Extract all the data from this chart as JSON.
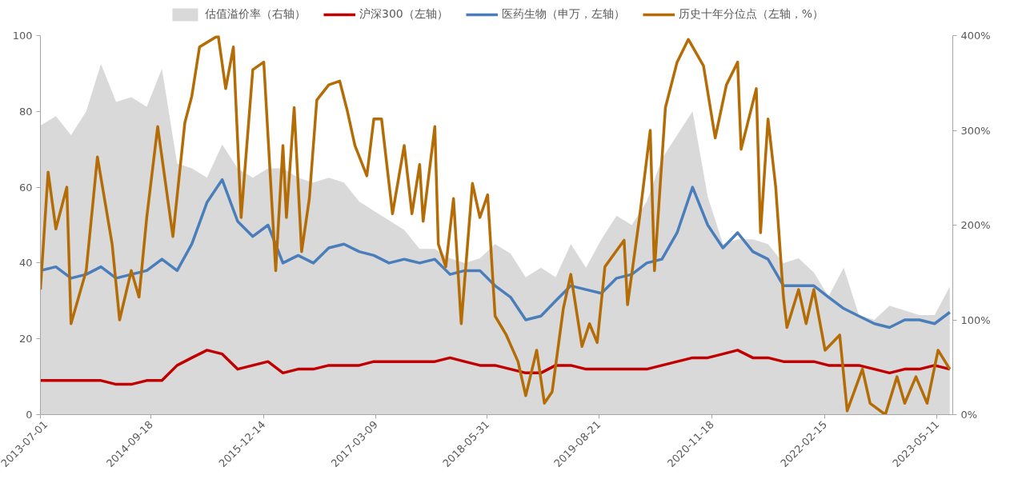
{
  "chart_data": {
    "type": "line",
    "legend": "top",
    "x": [
      "2013-07",
      "2013-09",
      "2013-11",
      "2014-01",
      "2014-03",
      "2014-05",
      "2014-07",
      "2014-09",
      "2014-11",
      "2015-01",
      "2015-03",
      "2015-05",
      "2015-07",
      "2015-09",
      "2015-11",
      "2016-01",
      "2016-03",
      "2016-05",
      "2016-07",
      "2016-09",
      "2016-11",
      "2017-01",
      "2017-03",
      "2017-05",
      "2017-07",
      "2017-09",
      "2017-11",
      "2018-01",
      "2018-03",
      "2018-05",
      "2018-07",
      "2018-09",
      "2018-11",
      "2019-01",
      "2019-03",
      "2019-05",
      "2019-07",
      "2019-09",
      "2019-11",
      "2020-01",
      "2020-03",
      "2020-05",
      "2020-07",
      "2020-09",
      "2020-11",
      "2021-01",
      "2021-03",
      "2021-05",
      "2021-07",
      "2021-09",
      "2021-11",
      "2022-01",
      "2022-03",
      "2022-05",
      "2022-07",
      "2022-09",
      "2022-11",
      "2023-01",
      "2023-03",
      "2023-05",
      "2023-07"
    ],
    "xlim": [
      "2013-07-01",
      "2023-07-13"
    ],
    "xticks": [
      "2013-07-01",
      "2014-09-18",
      "2015-12-14",
      "2017-03-09",
      "2018-05-31",
      "2019-08-21",
      "2020-11-18",
      "2022-02-15",
      "2023-05-11"
    ],
    "ylim": [
      0,
      100
    ],
    "yticks": [
      0,
      20,
      40,
      60,
      80,
      100
    ],
    "y2lim": [
      0,
      400
    ],
    "y2ticks": [
      {
        "value": 0,
        "label": "0%"
      },
      {
        "value": 100,
        "label": "100%"
      },
      {
        "value": 200,
        "label": "200%"
      },
      {
        "value": 300,
        "label": "300%"
      },
      {
        "value": 400,
        "label": "400%"
      }
    ],
    "series": [
      {
        "name": "估值溢价率（右轴）",
        "type": "area",
        "axis": "y2",
        "color": "#d9d9d9",
        "values": [
          305,
          315,
          295,
          320,
          370,
          330,
          335,
          325,
          365,
          265,
          260,
          250,
          285,
          260,
          250,
          260,
          260,
          250,
          245,
          250,
          245,
          225,
          215,
          205,
          195,
          175,
          175,
          165,
          160,
          165,
          180,
          170,
          145,
          155,
          145,
          180,
          155,
          185,
          210,
          200,
          225,
          270,
          295,
          320,
          230,
          180,
          185,
          185,
          180,
          160,
          165,
          150,
          125,
          155,
          105,
          100,
          115,
          110,
          105,
          105,
          135
        ]
      },
      {
        "name": "沪深300（左轴）",
        "color": "#c00000",
        "values": [
          9,
          9,
          9,
          9,
          9,
          8,
          8,
          9,
          9,
          13,
          15,
          17,
          16,
          12,
          13,
          14,
          11,
          12,
          12,
          13,
          13,
          13,
          14,
          14,
          14,
          14,
          14,
          15,
          14,
          13,
          13,
          12,
          11,
          11,
          13,
          13,
          12,
          12,
          12,
          12,
          12,
          13,
          14,
          15,
          15,
          16,
          17,
          15,
          15,
          14,
          14,
          14,
          13,
          13,
          13,
          12,
          11,
          12,
          12,
          13,
          12
        ]
      },
      {
        "name": "医药生物（申万，左轴）",
        "color": "#4a7ebb",
        "values": [
          38,
          39,
          36,
          37,
          39,
          36,
          37,
          38,
          41,
          38,
          45,
          56,
          62,
          51,
          47,
          50,
          40,
          42,
          40,
          44,
          45,
          43,
          42,
          40,
          41,
          40,
          41,
          37,
          38,
          38,
          34,
          31,
          25,
          26,
          30,
          34,
          33,
          32,
          36,
          37,
          40,
          41,
          48,
          60,
          50,
          44,
          48,
          43,
          41,
          34,
          34,
          34,
          31,
          28,
          26,
          24,
          23,
          25,
          25,
          24,
          27
        ]
      },
      {
        "name": "历史十年分位点（左轴，%）",
        "color": "#b46d06",
        "x": [
          "2013-07-01",
          "2013-08-01",
          "2013-09-01",
          "2013-10-15",
          "2013-11-01",
          "2014-01-01",
          "2014-02-15",
          "2014-04-15",
          "2014-05-15",
          "2014-07-01",
          "2014-08-01",
          "2014-09-01",
          "2014-10-15",
          "2014-12-15",
          "2015-02-01",
          "2015-03-01",
          "2015-04-01",
          "2015-06-15",
          "2015-07-15",
          "2015-08-15",
          "2015-09-15",
          "2015-11-01",
          "2015-12-15",
          "2016-02-01",
          "2016-03-01",
          "2016-03-15",
          "2016-04-15",
          "2016-05-15",
          "2016-06-15",
          "2016-07-15",
          "2016-09-01",
          "2016-10-15",
          "2016-11-15",
          "2016-12-15",
          "2017-02-01",
          "2017-03-01",
          "2017-04-01",
          "2017-05-15",
          "2017-07-01",
          "2017-08-01",
          "2017-09-01",
          "2017-09-15",
          "2017-11-01",
          "2017-11-15",
          "2017-12-15",
          "2018-01-15",
          "2018-02-15",
          "2018-04-01",
          "2018-05-01",
          "2018-06-01",
          "2018-07-01",
          "2018-08-15",
          "2018-10-01",
          "2018-11-01",
          "2018-12-15",
          "2019-01-15",
          "2019-02-15",
          "2019-04-01",
          "2019-05-01",
          "2019-06-15",
          "2019-07-15",
          "2019-08-15",
          "2019-09-15",
          "2019-12-01",
          "2019-12-15",
          "2020-02-01",
          "2020-03-15",
          "2020-04-01",
          "2020-05-15",
          "2020-07-01",
          "2020-08-15",
          "2020-10-15",
          "2020-12-01",
          "2021-01-15",
          "2021-03-01",
          "2021-03-15",
          "2021-05-15",
          "2021-06-01",
          "2021-07-01",
          "2021-08-01",
          "2021-09-01",
          "2021-09-15",
          "2021-11-01",
          "2021-12-01",
          "2022-01-01",
          "2022-02-15",
          "2022-04-15",
          "2022-05-15",
          "2022-07-15",
          "2022-08-15",
          "2022-10-15",
          "2022-12-01",
          "2023-01-01",
          "2023-02-15",
          "2023-04-01",
          "2023-05-15",
          "2023-07-01"
        ],
        "values": [
          33,
          64,
          49,
          60,
          24,
          38,
          68,
          45,
          25,
          38,
          31,
          52,
          76,
          47,
          77,
          84,
          97,
          100,
          86,
          97,
          52,
          91,
          93,
          38,
          71,
          52,
          81,
          43,
          57,
          83,
          87,
          88,
          80,
          71,
          63,
          78,
          78,
          53,
          71,
          53,
          66,
          51,
          76,
          45,
          39,
          57,
          24,
          61,
          52,
          58,
          26,
          21,
          14,
          5,
          17,
          3,
          6,
          28,
          37,
          18,
          24,
          19,
          39,
          46,
          29,
          52,
          75,
          38,
          81,
          93,
          99,
          92,
          73,
          87,
          93,
          70,
          86,
          48,
          78,
          60,
          31,
          23,
          33,
          24,
          33,
          17,
          21,
          1,
          12,
          3,
          0,
          10,
          3,
          10,
          3,
          17,
          12
        ]
      }
    ]
  }
}
